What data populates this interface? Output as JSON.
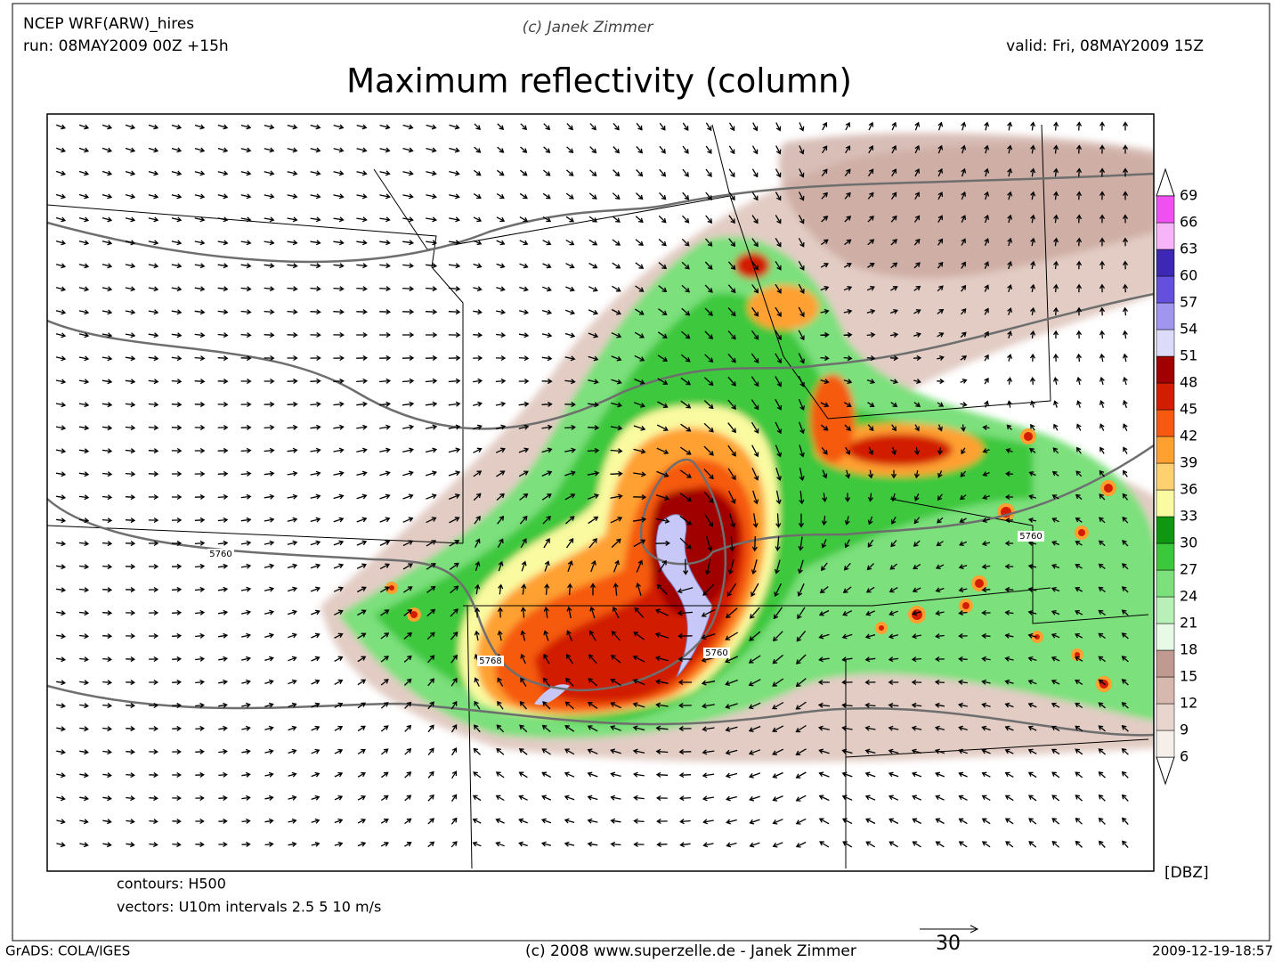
{
  "header": {
    "model": "NCEP WRF(ARW)_hires",
    "run": "run: 08MAY2009 00Z +15h",
    "credit": "(c) Janek Zimmer",
    "valid": "valid: Fri, 08MAY2009 15Z",
    "title": "Maximum reflectivity (column)"
  },
  "map": {
    "contour_labels": [
      "5760",
      "5760",
      "5768",
      "5760"
    ]
  },
  "colorbar": {
    "unit": "[DBZ]",
    "levels": [
      6,
      9,
      12,
      15,
      18,
      21,
      24,
      27,
      30,
      33,
      36,
      39,
      42,
      45,
      48,
      51,
      54,
      57,
      60,
      63,
      66,
      69
    ],
    "colors": [
      "#f6eee8",
      "#e8d6ce",
      "#d6b8ae",
      "#c09a90",
      "#e6fae6",
      "#b8f0b8",
      "#7ce07c",
      "#3cc83c",
      "#119611",
      "#fafaa0",
      "#ffd070",
      "#ffa030",
      "#f55a10",
      "#d21e00",
      "#a00000",
      "#dcdcfa",
      "#a096f0",
      "#6450dc",
      "#3c28b4",
      "#f8b4f8",
      "#f050f0",
      "#a000c8"
    ],
    "under_color": "#ffffff",
    "over_color": "#ffffff"
  },
  "notes": {
    "contours": "contours: H500",
    "vectors": "vectors: U10m intervals 2.5 5 10 m/s",
    "reference_vector": "30"
  },
  "footer": {
    "software": "GrADS: COLA/IGES",
    "copyright": "(c) 2008 www.superzelle.de - Janek Zimmer",
    "timestamp": "2009-12-19-18:57"
  }
}
